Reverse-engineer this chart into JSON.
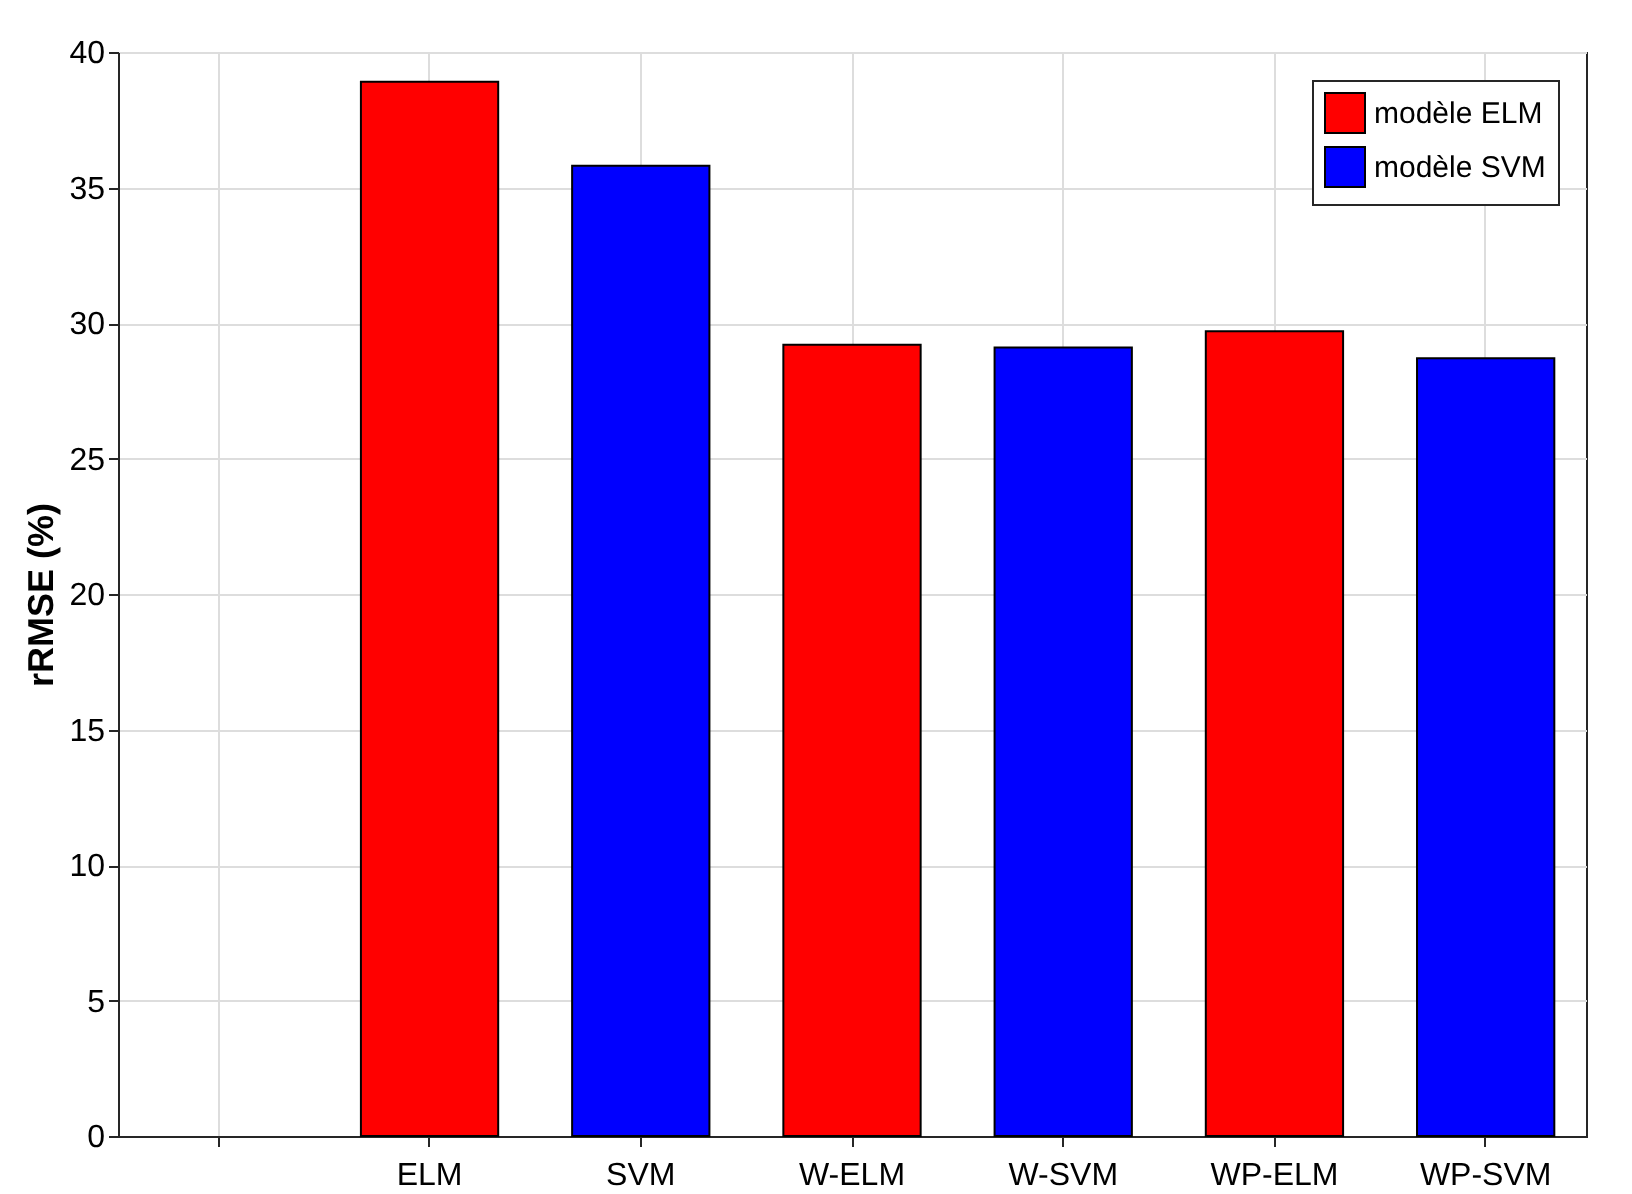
{
  "chart_data": {
    "type": "bar",
    "ylabel": "rRMSE (%)",
    "categories": [
      null,
      "ELM",
      "SVM",
      "W-ELM",
      "W-SVM",
      "WP-ELM",
      "WP-SVM"
    ],
    "series": [
      {
        "name": "modèle ELM",
        "color": "#ff0000",
        "values": [
          null,
          38.9,
          null,
          29.2,
          null,
          29.7,
          null
        ]
      },
      {
        "name": "modèle SVM",
        "color": "#0000ff",
        "values": [
          null,
          null,
          35.8,
          null,
          29.1,
          null,
          28.7
        ]
      }
    ],
    "ylim": [
      0,
      40
    ],
    "yticks": [
      0,
      5,
      10,
      15,
      20,
      25,
      30,
      35,
      40
    ],
    "grid": true,
    "legend": "top right"
  }
}
